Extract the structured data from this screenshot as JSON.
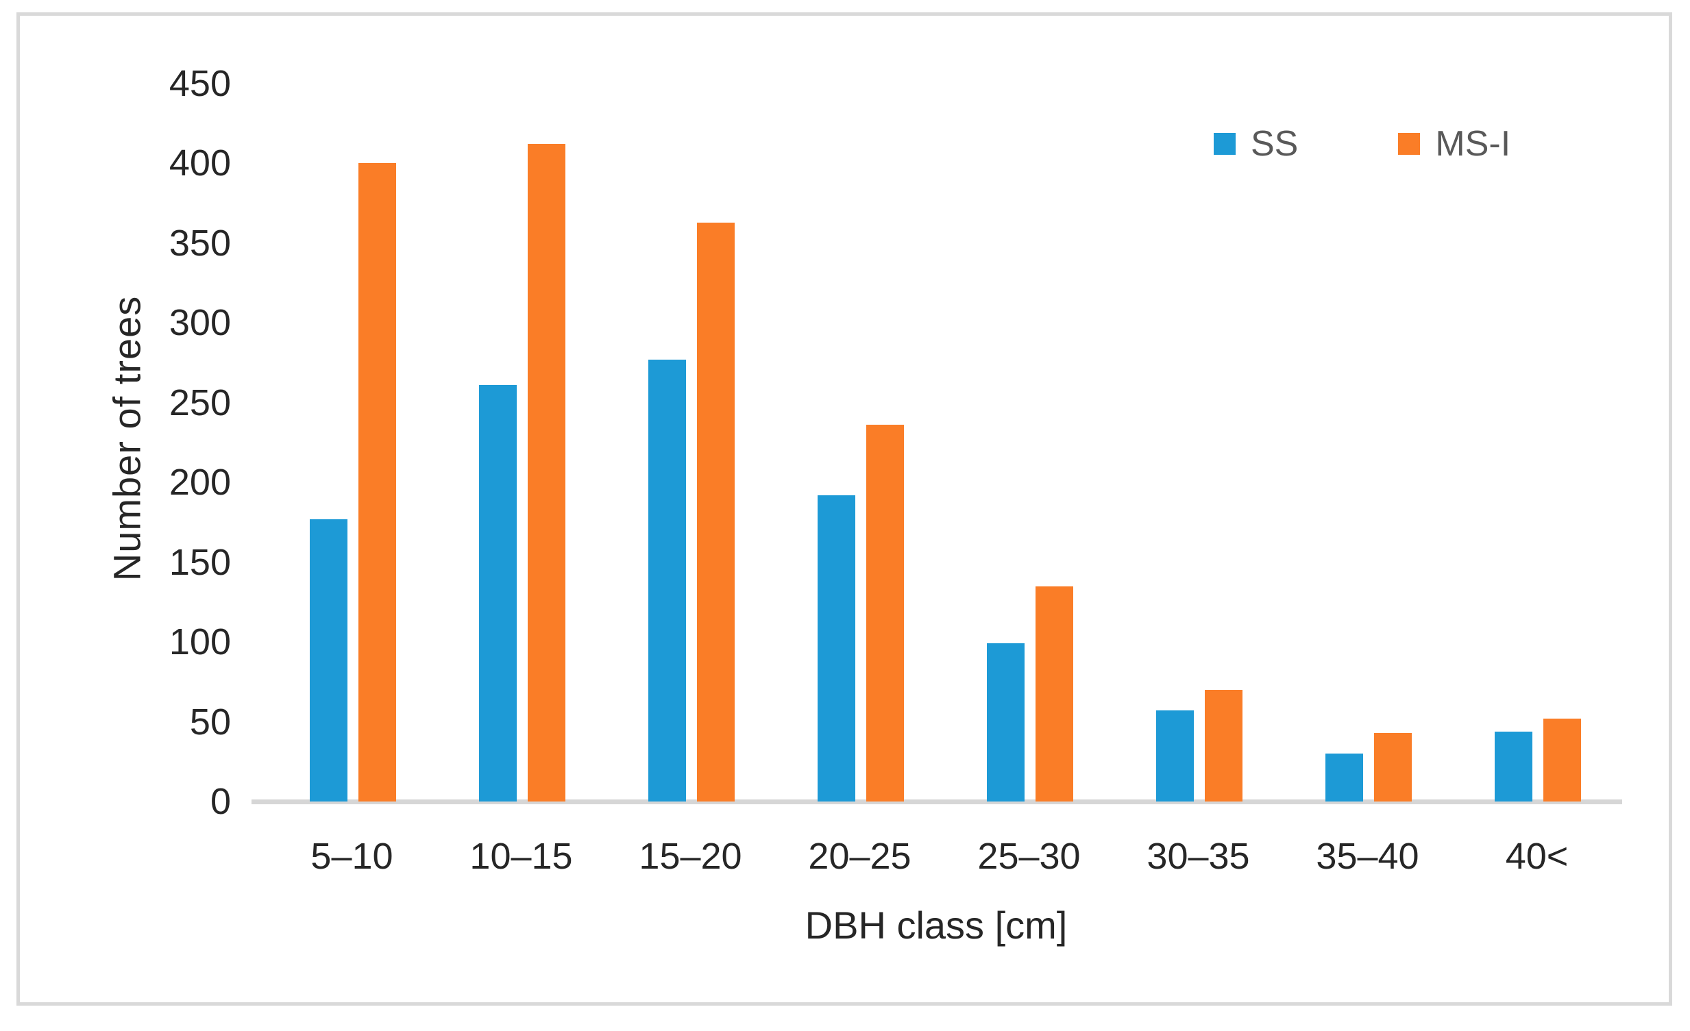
{
  "chart_data": {
    "type": "bar",
    "title": "",
    "categories": [
      "5–10",
      "10–15",
      "15–20",
      "20–25",
      "25–30",
      "30–35",
      "35–40",
      "40<"
    ],
    "series": [
      {
        "name": "SS",
        "color": "#1d9ad6",
        "values": [
          177,
          261,
          277,
          192,
          99,
          57,
          30,
          44
        ]
      },
      {
        "name": "MS-I",
        "color": "#fa7d27",
        "values": [
          400,
          412,
          363,
          236,
          135,
          70,
          43,
          52
        ]
      }
    ],
    "xlabel": "DBH class [cm]",
    "ylabel": "Number of trees",
    "ylim": [
      0,
      450
    ],
    "yticks": [
      0,
      50,
      100,
      150,
      200,
      250,
      300,
      350,
      400,
      450
    ],
    "grid": false,
    "legend_position": "top-right"
  },
  "styles": {
    "background": "#ffffff",
    "frame_border_color": "#d9d9d9",
    "axis_line_color": "#d6d6d6",
    "tick_text_color": "#262626",
    "legend_text_color": "#595959"
  }
}
